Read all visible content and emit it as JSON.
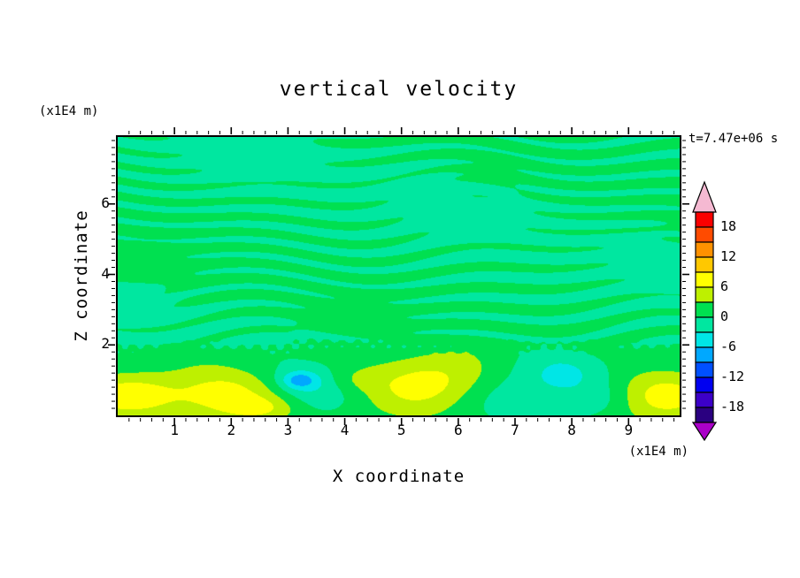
{
  "chart_data": {
    "type": "heatmap",
    "title": "vertical velocity",
    "xlabel": "X coordinate",
    "ylabel": "Z coordinate",
    "x_units_label": "(x1E4 m)",
    "y_units_label": "(x1E4 m)",
    "time_label": "t=7.47e+06 s",
    "xlim": [
      0,
      9.9
    ],
    "zlim": [
      0,
      7.9
    ],
    "x_major_ticks": [
      1,
      2,
      3,
      4,
      5,
      6,
      7,
      8,
      9
    ],
    "z_major_ticks": [
      2,
      4,
      6
    ],
    "minor_tick_step": 0.2,
    "contour_interval": 3,
    "levels": [
      -21,
      -18,
      -15,
      -12,
      -9,
      -6,
      -3,
      0,
      3,
      6,
      9,
      12,
      15,
      18,
      21
    ],
    "colorbar": {
      "labels": [
        "18",
        "12",
        "6",
        "0",
        "-6",
        "-12",
        "-18"
      ],
      "band_colors_top_to_bottom": [
        "#FA0000",
        "#FF4B00",
        "#FF9100",
        "#FFC800",
        "#FFFF00",
        "#BEF000",
        "#00E050",
        "#00E7A0",
        "#00E6E6",
        "#00A8FF",
        "#0050FF",
        "#0000F0",
        "#3C00C8",
        "#2A0080"
      ],
      "over_arrow_color": "#F5B9D2",
      "under_arrow_color": "#AA00C8"
    },
    "field": {
      "description": "Vertical velocity section: weak alternating green/turquoise horizontal streaks (|w|<3) above z~2; granular interface near z~2; below it stronger cells with updraft maxima (~+6 to +9, yellow) near x=0.2, 1.8, 5.6, 9.5, downdrafts (~-4, cyan) near x=3.4, 7.0, 7.9 and a small strong downdraft (~-9, blue) at x=3.2, z=1.0",
      "background": 0.8,
      "interface_z": 1.7,
      "interface_width": 0.5,
      "blobs": [
        {
          "x": 0.15,
          "z": 0.55,
          "amp": 6.5,
          "rx": 0.85,
          "rz": 0.6
        },
        {
          "x": 1.8,
          "z": 0.6,
          "amp": 6.8,
          "rx": 1.0,
          "rz": 0.75
        },
        {
          "x": 2.55,
          "z": 0.2,
          "amp": 3.5,
          "rx": 0.6,
          "rz": 0.35
        },
        {
          "x": 4.1,
          "z": 1.0,
          "amp": 3.0,
          "rx": 0.55,
          "rz": 0.4
        },
        {
          "x": 5.55,
          "z": 0.85,
          "amp": 7.0,
          "rx": 1.2,
          "rz": 0.85
        },
        {
          "x": 9.55,
          "z": 0.55,
          "amp": 6.5,
          "rx": 1.0,
          "rz": 0.7
        },
        {
          "x": 3.45,
          "z": 0.9,
          "amp": -4.5,
          "rx": 0.85,
          "rz": 0.6
        },
        {
          "x": 3.2,
          "z": 1.0,
          "amp": -6.0,
          "rx": 0.3,
          "rz": 0.24
        },
        {
          "x": 6.95,
          "z": 0.55,
          "amp": -4.0,
          "rx": 1.15,
          "rz": 0.7
        },
        {
          "x": 7.9,
          "z": 1.25,
          "amp": -4.0,
          "rx": 0.75,
          "rz": 0.55
        },
        {
          "x": 8.6,
          "z": 0.5,
          "amp": -2.5,
          "rx": 0.7,
          "rz": 0.5
        }
      ]
    }
  }
}
